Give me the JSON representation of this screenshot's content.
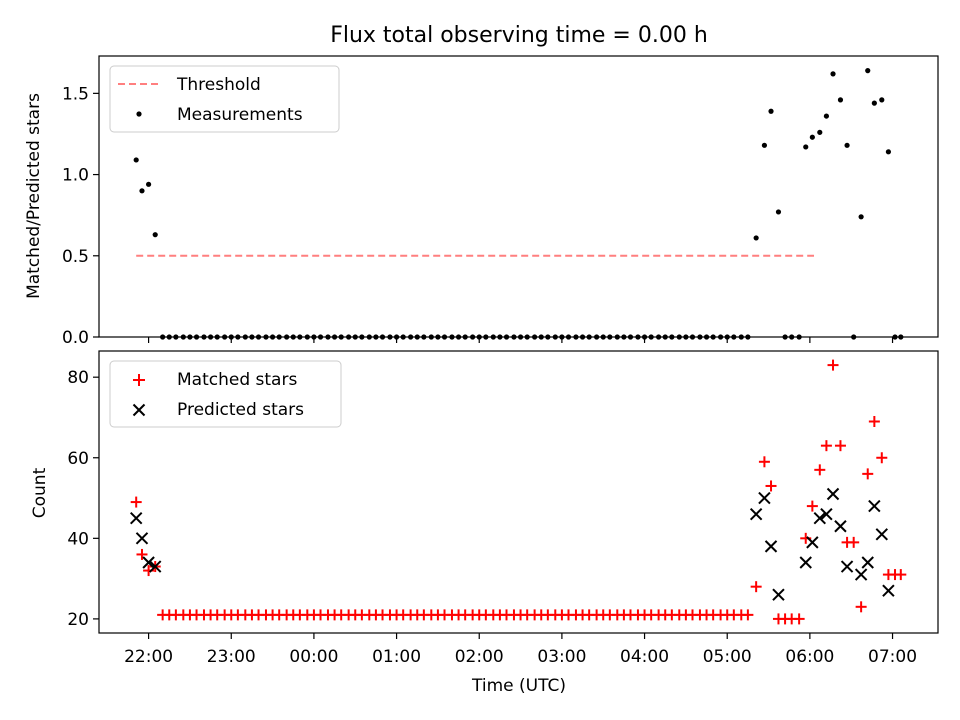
{
  "chart_data": [
    {
      "type": "scatter",
      "title": "Flux total observing time = 0.00 h",
      "xlabel": "",
      "ylabel": "Matched/Predicted stars",
      "x_unit": "hours relative to 00:00 UTC",
      "xlim": [
        -2.6,
        7.55
      ],
      "ylim": [
        0,
        1.73
      ],
      "yticks": [
        0.0,
        0.5,
        1.0,
        1.5
      ],
      "ytick_labels": [
        "0.0",
        "0.5",
        "1.0",
        "1.5"
      ],
      "grid": false,
      "legend_position": "upper-left",
      "threshold": {
        "name": "Threshold",
        "y": 0.5,
        "x_range": [
          -2.15,
          6.05
        ],
        "color": "#ff7f7f",
        "style": "dashed"
      },
      "series": [
        {
          "name": "Measurements",
          "color": "#000000",
          "marker": "dot",
          "x": [
            -2.15,
            -2.08,
            -2.0,
            -1.92,
            -1.83,
            -1.75,
            -1.67,
            -1.58,
            -1.5,
            -1.42,
            -1.33,
            -1.25,
            -1.17,
            -1.08,
            -1.0,
            -0.92,
            -0.83,
            -0.75,
            -0.67,
            -0.58,
            -0.5,
            -0.42,
            -0.33,
            -0.25,
            -0.17,
            -0.08,
            0.0,
            0.08,
            0.17,
            0.25,
            0.33,
            0.42,
            0.5,
            0.58,
            0.67,
            0.75,
            0.83,
            0.92,
            1.0,
            1.08,
            1.17,
            1.25,
            1.33,
            1.42,
            1.5,
            1.58,
            1.67,
            1.75,
            1.83,
            1.92,
            2.0,
            2.08,
            2.17,
            2.25,
            2.33,
            2.42,
            2.5,
            2.58,
            2.67,
            2.75,
            2.83,
            2.92,
            3.0,
            3.08,
            3.17,
            3.25,
            3.33,
            3.42,
            3.5,
            3.58,
            3.67,
            3.75,
            3.83,
            3.92,
            4.0,
            4.08,
            4.17,
            4.25,
            4.33,
            4.42,
            4.5,
            4.58,
            4.67,
            4.75,
            4.83,
            4.92,
            5.0,
            5.08,
            5.17,
            5.25,
            5.35,
            5.45,
            5.53,
            5.62,
            5.7,
            5.78,
            5.87,
            5.95,
            6.03,
            6.12,
            6.2,
            6.28,
            6.37,
            6.45,
            6.53,
            6.62,
            6.7,
            6.78,
            6.87,
            6.95,
            7.03,
            7.1
          ],
          "y": [
            1.09,
            0.9,
            0.94,
            0.63,
            0,
            0,
            0,
            0,
            0,
            0,
            0,
            0,
            0,
            0,
            0,
            0,
            0,
            0,
            0,
            0,
            0,
            0,
            0,
            0,
            0,
            0,
            0,
            0,
            0,
            0,
            0,
            0,
            0,
            0,
            0,
            0,
            0,
            0,
            0,
            0,
            0,
            0,
            0,
            0,
            0,
            0,
            0,
            0,
            0,
            0,
            0,
            0,
            0,
            0,
            0,
            0,
            0,
            0,
            0,
            0,
            0,
            0,
            0,
            0,
            0,
            0,
            0,
            0,
            0,
            0,
            0,
            0,
            0,
            0,
            0,
            0,
            0,
            0,
            0,
            0,
            0,
            0,
            0,
            0,
            0,
            0,
            0,
            0,
            0,
            0,
            0.61,
            1.18,
            1.39,
            0.77,
            0,
            0,
            0,
            1.17,
            1.23,
            1.26,
            1.36,
            1.62,
            1.46,
            1.18,
            0,
            0.74,
            1.64,
            1.44,
            1.46,
            1.14,
            0,
            0
          ]
        }
      ]
    },
    {
      "type": "scatter",
      "title": "",
      "xlabel": "Time (UTC)",
      "ylabel": "Count",
      "x_unit": "hours relative to 00:00 UTC",
      "xlim": [
        -2.6,
        7.55
      ],
      "ylim": [
        16.5,
        86.5
      ],
      "yticks": [
        20,
        40,
        60,
        80
      ],
      "ytick_labels": [
        "20",
        "40",
        "60",
        "80"
      ],
      "xticks": [
        -2,
        -1,
        0,
        1,
        2,
        3,
        4,
        5,
        6,
        7
      ],
      "xtick_labels": [
        "22:00",
        "23:00",
        "00:00",
        "01:00",
        "02:00",
        "03:00",
        "04:00",
        "05:00",
        "06:00",
        "07:00"
      ],
      "grid": false,
      "legend_position": "upper-left",
      "series": [
        {
          "name": "Matched stars",
          "color": "#ff0000",
          "marker": "plus",
          "x": [
            -2.15,
            -2.08,
            -2.0,
            -1.92,
            -1.83,
            -1.75,
            -1.67,
            -1.58,
            -1.5,
            -1.42,
            -1.33,
            -1.25,
            -1.17,
            -1.08,
            -1.0,
            -0.92,
            -0.83,
            -0.75,
            -0.67,
            -0.58,
            -0.5,
            -0.42,
            -0.33,
            -0.25,
            -0.17,
            -0.08,
            0.0,
            0.08,
            0.17,
            0.25,
            0.33,
            0.42,
            0.5,
            0.58,
            0.67,
            0.75,
            0.83,
            0.92,
            1.0,
            1.08,
            1.17,
            1.25,
            1.33,
            1.42,
            1.5,
            1.58,
            1.67,
            1.75,
            1.83,
            1.92,
            2.0,
            2.08,
            2.17,
            2.25,
            2.33,
            2.42,
            2.5,
            2.58,
            2.67,
            2.75,
            2.83,
            2.92,
            3.0,
            3.08,
            3.17,
            3.25,
            3.33,
            3.42,
            3.5,
            3.58,
            3.67,
            3.75,
            3.83,
            3.92,
            4.0,
            4.08,
            4.17,
            4.25,
            4.33,
            4.42,
            4.5,
            4.58,
            4.67,
            4.75,
            4.83,
            4.92,
            5.0,
            5.08,
            5.17,
            5.25,
            5.35,
            5.45,
            5.53,
            5.62,
            5.7,
            5.78,
            5.87,
            5.95,
            6.03,
            6.12,
            6.2,
            6.28,
            6.37,
            6.45,
            6.53,
            6.62,
            6.7,
            6.78,
            6.87,
            6.95,
            7.03,
            7.1
          ],
          "y": [
            49,
            36,
            32,
            33,
            21,
            21,
            21,
            21,
            21,
            21,
            21,
            21,
            21,
            21,
            21,
            21,
            21,
            21,
            21,
            21,
            21,
            21,
            21,
            21,
            21,
            21,
            21,
            21,
            21,
            21,
            21,
            21,
            21,
            21,
            21,
            21,
            21,
            21,
            21,
            21,
            21,
            21,
            21,
            21,
            21,
            21,
            21,
            21,
            21,
            21,
            21,
            21,
            21,
            21,
            21,
            21,
            21,
            21,
            21,
            21,
            21,
            21,
            21,
            21,
            21,
            21,
            21,
            21,
            21,
            21,
            21,
            21,
            21,
            21,
            21,
            21,
            21,
            21,
            21,
            21,
            21,
            21,
            21,
            21,
            21,
            21,
            21,
            21,
            21,
            21,
            28,
            59,
            53,
            20,
            20,
            20,
            20,
            40,
            48,
            57,
            63,
            83,
            63,
            39,
            39,
            23,
            56,
            69,
            60,
            31,
            31,
            31
          ]
        },
        {
          "name": "Predicted stars",
          "color": "#000000",
          "marker": "x",
          "x": [
            -2.15,
            -2.08,
            -2.0,
            -1.92,
            5.35,
            5.45,
            5.53,
            5.62,
            5.95,
            6.03,
            6.12,
            6.2,
            6.28,
            6.37,
            6.45,
            6.62,
            6.7,
            6.78,
            6.87,
            6.95
          ],
          "y": [
            45,
            40,
            34,
            33,
            46,
            50,
            38,
            26,
            34,
            39,
            45,
            46,
            51,
            43,
            33,
            31,
            34,
            48,
            41,
            27
          ]
        }
      ]
    }
  ]
}
